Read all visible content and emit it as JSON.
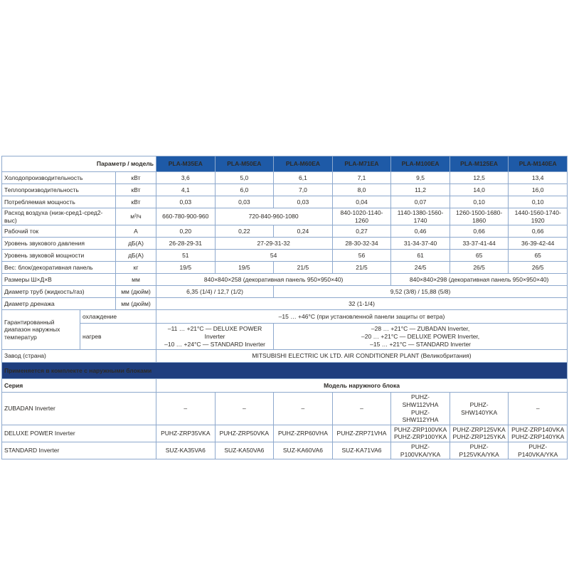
{
  "colors": {
    "header_blue": "#1e5aa7",
    "banner_navy": "#1f3e7e",
    "border": "#8ea9cd",
    "text": "#2d2a26"
  },
  "header": {
    "corner_label": "Параметр / модель",
    "models": [
      "PLA-M35EA",
      "PLA-M50EA",
      "PLA-M60EA",
      "PLA-M71EA",
      "PLA-M100EA",
      "PLA-M125EA",
      "PLA-M140EA"
    ]
  },
  "spec_rows": [
    {
      "label": "Холодопроизводительность",
      "unit": "кВт",
      "cells": [
        {
          "text": "3,6",
          "span": 1
        },
        {
          "text": "5,0",
          "span": 1
        },
        {
          "text": "6,1",
          "span": 1
        },
        {
          "text": "7,1",
          "span": 1
        },
        {
          "text": "9,5",
          "span": 1
        },
        {
          "text": "12,5",
          "span": 1
        },
        {
          "text": "13,4",
          "span": 1
        }
      ]
    },
    {
      "label": "Теплопроизводительность",
      "unit": "кВт",
      "cells": [
        {
          "text": "4,1",
          "span": 1
        },
        {
          "text": "6,0",
          "span": 1
        },
        {
          "text": "7,0",
          "span": 1
        },
        {
          "text": "8,0",
          "span": 1
        },
        {
          "text": "11,2",
          "span": 1
        },
        {
          "text": "14,0",
          "span": 1
        },
        {
          "text": "16,0",
          "span": 1
        }
      ]
    },
    {
      "label": "Потребляемая мощность",
      "unit": "кВт",
      "cells": [
        {
          "text": "0,03",
          "span": 1
        },
        {
          "text": "0,03",
          "span": 1
        },
        {
          "text": "0,03",
          "span": 1
        },
        {
          "text": "0,04",
          "span": 1
        },
        {
          "text": "0,07",
          "span": 1
        },
        {
          "text": "0,10",
          "span": 1
        },
        {
          "text": "0,10",
          "span": 1
        }
      ]
    },
    {
      "label": "Расход воздуха (низк-сред1-сред2-выс)",
      "unit": "м³/ч",
      "cells": [
        {
          "text": "660-780-900-960",
          "span": 1
        },
        {
          "text": "720-840-960-1080",
          "span": 2
        },
        {
          "text": "840-1020-1140-1260",
          "span": 1
        },
        {
          "text": "1140-1380-1560-1740",
          "span": 1
        },
        {
          "text": "1260-1500-1680-1860",
          "span": 1
        },
        {
          "text": "1440-1560-1740-1920",
          "span": 1
        }
      ]
    },
    {
      "label": "Рабочий ток",
      "unit": "А",
      "cells": [
        {
          "text": "0,20",
          "span": 1
        },
        {
          "text": "0,22",
          "span": 1
        },
        {
          "text": "0,24",
          "span": 1
        },
        {
          "text": "0,27",
          "span": 1
        },
        {
          "text": "0,46",
          "span": 1
        },
        {
          "text": "0,66",
          "span": 1
        },
        {
          "text": "0,66",
          "span": 1
        }
      ]
    },
    {
      "label": "Уровень звукового давления",
      "unit": "дБ(А)",
      "cells": [
        {
          "text": "26-28-29-31",
          "span": 1
        },
        {
          "text": "27-29-31-32",
          "span": 2
        },
        {
          "text": "28-30-32-34",
          "span": 1
        },
        {
          "text": "31-34-37-40",
          "span": 1
        },
        {
          "text": "33-37-41-44",
          "span": 1
        },
        {
          "text": "36-39-42-44",
          "span": 1
        }
      ]
    },
    {
      "label": "Уровень звуковой мощности",
      "unit": "дБ(А)",
      "cells": [
        {
          "text": "51",
          "span": 1
        },
        {
          "text": "54",
          "span": 2
        },
        {
          "text": "56",
          "span": 1
        },
        {
          "text": "61",
          "span": 1
        },
        {
          "text": "65",
          "span": 1
        },
        {
          "text": "65",
          "span": 1
        }
      ]
    },
    {
      "label": "Вес: блок/декоративная панель",
      "unit": "кг",
      "cells": [
        {
          "text": "19/5",
          "span": 1
        },
        {
          "text": "19/5",
          "span": 1
        },
        {
          "text": "21/5",
          "span": 1
        },
        {
          "text": "21/5",
          "span": 1
        },
        {
          "text": "24/5",
          "span": 1
        },
        {
          "text": "26/5",
          "span": 1
        },
        {
          "text": "26/5",
          "span": 1
        }
      ]
    },
    {
      "label": "Размеры Ш×Д×В",
      "unit": "мм",
      "cells": [
        {
          "text": "840×840×258 (декоративная панель 950×950×40)",
          "span": 4
        },
        {
          "text": "840×840×298 (декоративная панель 950×950×40)",
          "span": 3
        }
      ]
    },
    {
      "label": "Диаметр труб (жидкость/газ)",
      "unit": "мм (дюйм)",
      "cells": [
        {
          "text": "6,35 (1/4) / 12,7 (1/2)",
          "span": 2
        },
        {
          "text": "9,52 (3/8) / 15,88 (5/8)",
          "span": 5
        }
      ]
    },
    {
      "label": "Диаметр дренажа",
      "unit": "мм (дюйм)",
      "cells": [
        {
          "text": "32 (1-1/4)",
          "span": 7
        }
      ]
    }
  ],
  "temp_block": {
    "label": "Гарантированный диапазон наружных температур",
    "rows": [
      {
        "sublabel": "охлаждение",
        "cells": [
          {
            "text": "–15 … +46°C (при установленной панели защиты от ветра)",
            "span": 7
          }
        ]
      },
      {
        "sublabel": "нагрев",
        "cells": [
          {
            "text": "–11 … +21°C — DELUXE POWER Inverter\n–10 … +24°C — STANDARD Inverter",
            "span": 2
          },
          {
            "text": "–28 … +21°C — ZUBADAN Inverter,\n–20 … +21°C — DELUXE POWER Inverter,\n–15 … +21°C — STANDARD Inverter",
            "span": 5
          }
        ]
      }
    ]
  },
  "factory_row": {
    "label": "Завод (страна)",
    "value": "MITSUBISHI ELECTRIC UK LTD. AIR CONDITIONER PLANT (Великобритания)"
  },
  "outdoor_section": {
    "banner": "Применяется в комплекте с наружными блоками",
    "series_label": "Серия",
    "model_header": "Модель наружного блока",
    "rows": [
      {
        "label": "ZUBADAN Inverter",
        "cells": [
          {
            "text": "–",
            "span": 1
          },
          {
            "text": "–",
            "span": 1
          },
          {
            "text": "–",
            "span": 1
          },
          {
            "text": "–",
            "span": 1
          },
          {
            "text": "PUHZ-SHW112VHA\nPUHZ-SHW112YHA",
            "span": 1
          },
          {
            "text": "PUHZ-SHW140YKA",
            "span": 1
          },
          {
            "text": "–",
            "span": 1
          }
        ]
      },
      {
        "label": "DELUXE POWER Inverter",
        "cells": [
          {
            "text": "PUHZ-ZRP35VKA",
            "span": 1
          },
          {
            "text": "PUHZ-ZRP50VKA",
            "span": 1
          },
          {
            "text": "PUHZ-ZRP60VHA",
            "span": 1
          },
          {
            "text": "PUHZ-ZRP71VHA",
            "span": 1
          },
          {
            "text": "PUHZ-ZRP100VKA\nPUHZ-ZRP100YKA",
            "span": 1
          },
          {
            "text": "PUHZ-ZRP125VKA\nPUHZ-ZRP125YKA",
            "span": 1
          },
          {
            "text": "PUHZ-ZRP140VKA\nPUHZ-ZRP140YKA",
            "span": 1
          }
        ]
      },
      {
        "label": "STANDARD Inverter",
        "cells": [
          {
            "text": "SUZ-KA35VA6",
            "span": 1
          },
          {
            "text": "SUZ-KA50VA6",
            "span": 1
          },
          {
            "text": "SUZ-KA60VA6",
            "span": 1
          },
          {
            "text": "SUZ-KA71VA6",
            "span": 1
          },
          {
            "text": "PUHZ-P100VKA/YKA",
            "span": 1
          },
          {
            "text": "PUHZ-P125VKA/YKA",
            "span": 1
          },
          {
            "text": "PUHZ-P140VKA/YKA",
            "span": 1
          }
        ]
      }
    ]
  }
}
